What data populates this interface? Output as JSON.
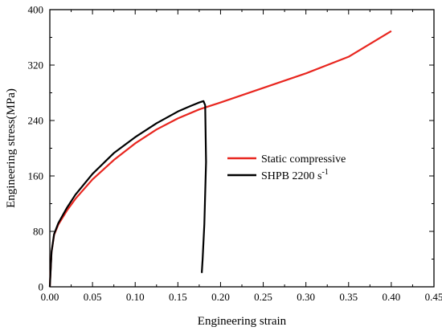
{
  "chart_data": {
    "type": "line",
    "title": "",
    "xlabel": "Engineering strain",
    "ylabel": "Engineering stress(MPa)",
    "xlim": [
      0.0,
      0.45
    ],
    "ylim": [
      0,
      400
    ],
    "xticks": [
      "0.00",
      "0.05",
      "0.10",
      "0.15",
      "0.20",
      "0.25",
      "0.30",
      "0.35",
      "0.40",
      "0.45"
    ],
    "yticks": [
      "0",
      "80",
      "160",
      "240",
      "320",
      "400"
    ],
    "grid": false,
    "legend_position": "center-right",
    "series": [
      {
        "name": "Static compressive",
        "color": "#e8261f",
        "x": [
          0.0,
          0.002,
          0.005,
          0.01,
          0.02,
          0.03,
          0.05,
          0.075,
          0.1,
          0.125,
          0.15,
          0.175,
          0.2,
          0.25,
          0.3,
          0.35,
          0.4
        ],
        "y": [
          0,
          50,
          75,
          90,
          110,
          127,
          155,
          183,
          207,
          227,
          243,
          256,
          266,
          287,
          308,
          332,
          369
        ]
      },
      {
        "name": "SHPB  2200 s",
        "name_sup": "-1",
        "color": "#000000",
        "x": [
          0.0,
          0.002,
          0.005,
          0.01,
          0.02,
          0.03,
          0.05,
          0.075,
          0.1,
          0.125,
          0.15,
          0.165,
          0.175,
          0.18,
          0.182,
          0.183,
          0.181,
          0.179,
          0.178
        ],
        "y": [
          0,
          50,
          76,
          92,
          114,
          133,
          163,
          193,
          216,
          236,
          253,
          261,
          266,
          268,
          262,
          180,
          90,
          40,
          20
        ]
      }
    ]
  }
}
